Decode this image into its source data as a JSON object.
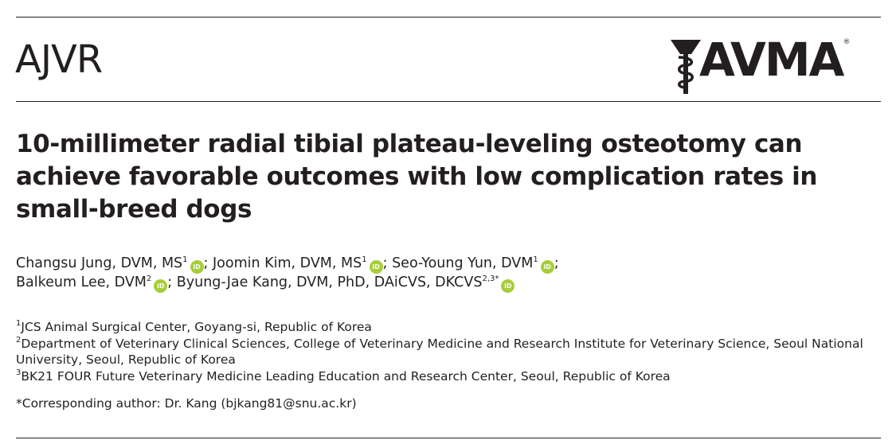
{
  "header": {
    "journal_name": "AJVR",
    "publisher_logo_text": "AVMA",
    "registered_mark": "®"
  },
  "article": {
    "title": "10-millimeter radial tibial plateau-leveling osteotomy can achieve favorable outcomes with low complication rates in small-breed dogs"
  },
  "authors": [
    {
      "name": "Changsu Jung, DVM, MS",
      "affil": "1",
      "sep": "; "
    },
    {
      "name": "Joomin Kim, DVM, MS",
      "affil": "1",
      "sep": "; "
    },
    {
      "name": "Seo-Young Yun, DVM",
      "affil": "1",
      "sep": ";"
    },
    {
      "name": "Balkeum Lee, DVM",
      "affil": "2",
      "sep": "; "
    },
    {
      "name": "Byung-Jae Kang, DVM, PhD, DAiCVS, DKCVS",
      "affil": "2,3*",
      "sep": ""
    }
  ],
  "orcid_label": "iD",
  "affiliations": [
    {
      "num": "1",
      "text": "JCS Animal Surgical Center, Goyang-si, Republic of Korea"
    },
    {
      "num": "2",
      "text": "Department of Veterinary Clinical Sciences, College of Veterinary Medicine and Research Institute for Veterinary Science, Seoul National University, Seoul, Republic of Korea"
    },
    {
      "num": "3",
      "text": "BK21 FOUR Future Veterinary Medicine Leading Education and Research Center, Seoul, Republic of Korea"
    }
  ],
  "corresponding": "*Corresponding author: Dr. Kang (bjkang81@snu.ac.kr)",
  "colors": {
    "text": "#231f20",
    "orcid": "#a6ce39"
  }
}
